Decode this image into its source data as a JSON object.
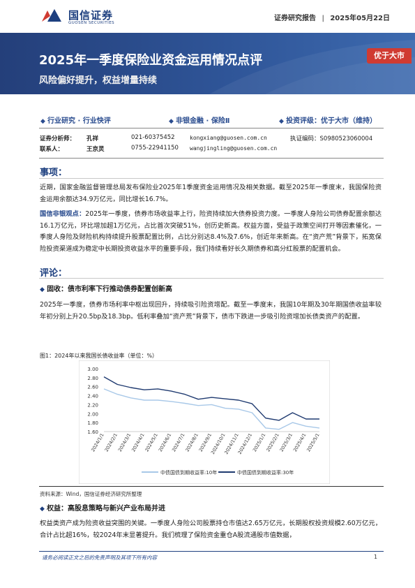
{
  "header": {
    "logo_cn": "国信证券",
    "logo_en": "GUOSEN SECURITIES",
    "report_type": "证券研究报告",
    "separator": "|",
    "date": "2025年05月22日"
  },
  "banner": {
    "title": "2025年一季度保险业资金运用情况点评",
    "subtitle": "风险偏好提升，权益增量持续",
    "rating_badge": "优于大市"
  },
  "categories": [
    "行业研究 · 行业快评",
    "非银金融 · 保险Ⅱ",
    "投资评级：优于大市（维持）"
  ],
  "analysts": [
    {
      "role": "证券分析师：",
      "name": "孔祥",
      "phone": "021-60375452",
      "email": "kongxiang@guosen.com.cn",
      "cert_label": "执证编码：",
      "cert": "S0980523060004"
    },
    {
      "role": "联系人：",
      "name": "王京灵",
      "phone": "0755-22941150",
      "email": "wangjingling@guosen.com.cn",
      "cert_label": "",
      "cert": ""
    }
  ],
  "sections": {
    "event_title": "事项：",
    "event_text": "近期，国家金融监督管理总局发布保险业2025年1季度资金运用情况及相关数据。截至2025年一季度末，我国保险资金运用余额达34.9万亿元，同比增长16.7%。",
    "view_lead": "国信非银观点：",
    "view_text": "2025年一季度，债券市场收益率上行，险资持续加大债券投资力度。一季度人身险公司债券配置余额达16.1万亿元，环比增加超1万亿元，占比首次突破51%，创历史新高。权益方面，受益于政策空间打开等因素催化，一季度人身险及财险机构持续提升股票配置比例，占比分别达8.4%及7.6%，创近年来新高。在“资产荒”背景下，拓宽保险投资渠道成为稳定中长期投资收益水平的重要手段，我们持续看好长久期债券和高分红股票的配置机会。",
    "comment_title": "评论：",
    "sub1": "固收：债市利率下行推动债券配置创新高",
    "sub1_text": "2025年一季度，债券市场利率中枢出现回升，持续吸引险资增配。截至一季度末，我国10年期及30年期国债收益率较年初分别上升20.5bp及18.3bp。低利率叠加“资产荒”背景下，债市下跌进一步吸引险资增加长债类资产的配置。",
    "fig_caption": "图1：2024年以来我国长债收益率（单位：%）",
    "source": "资料来源：Wind，国信证券经济研究所整理",
    "sub2": "权益：高股息策略与新兴产业布局并进",
    "sub2_text": "权益类资产成为险资收益突围的关键。一季度人身险公司股票持仓市值达2.65万亿元，长期股权投资规模2.60万亿元，合计占比超16%，较2024年末显著提升。我们梳理了保险资金重仓A股流通股市值数据，"
  },
  "chart_data": {
    "type": "line",
    "ylim": [
      1.6,
      3.0
    ],
    "yticks": [
      "3.00",
      "2.80",
      "2.60",
      "2.40",
      "2.20",
      "2.00",
      "1.80",
      "1.60"
    ],
    "categories": [
      "2024/1/1",
      "2024/2/1",
      "2024/3/1",
      "2024/4/1",
      "2024/5/1",
      "2024/6/1",
      "2024/7/1",
      "2024/8/1",
      "2024/9/1",
      "2024/10/1",
      "2024/11/1",
      "2024/12/1",
      "2025/1/1",
      "2025/2/1",
      "2025/3/1",
      "2025/4/1",
      "2025/5/1"
    ],
    "series": [
      {
        "name": "中债国债到期收益率:10年",
        "color": "#a8c8e8",
        "values": [
          2.55,
          2.43,
          2.35,
          2.3,
          2.3,
          2.27,
          2.23,
          2.18,
          2.2,
          2.12,
          2.1,
          2.02,
          1.68,
          1.65,
          1.8,
          1.72,
          1.68
        ]
      },
      {
        "name": "中债国债到期收益率:30年",
        "color": "#1f3a70",
        "values": [
          2.82,
          2.65,
          2.58,
          2.53,
          2.55,
          2.5,
          2.43,
          2.32,
          2.36,
          2.33,
          2.3,
          2.22,
          1.9,
          1.85,
          2.02,
          1.88,
          1.88
        ]
      }
    ]
  },
  "footer": {
    "disclaimer": "请务必阅读正文之后的免责声明及其项下所有内容",
    "page": "1"
  },
  "colors": {
    "brand": "#1d3f7f",
    "badge": "#d03b32",
    "accent": "#2a4c8f"
  }
}
